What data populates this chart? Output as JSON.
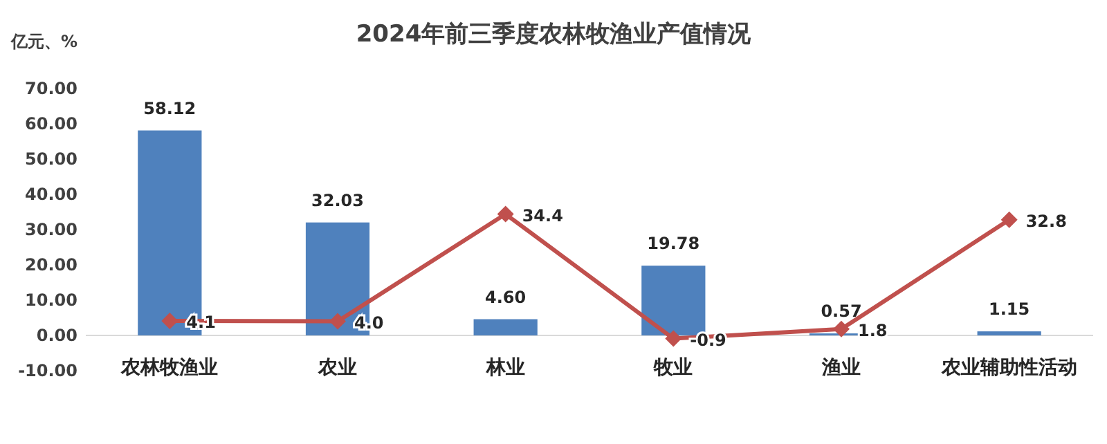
{
  "chart_data": {
    "type": "bar",
    "title": "2024年前三季度农林牧渔业产值情况",
    "ylabel": "亿元、%",
    "categories": [
      "农林牧渔业",
      "农业",
      "林业",
      "牧业",
      "渔业",
      "农业辅助性活动"
    ],
    "series": [
      {
        "color": "#4f81bd",
        "values": [
          58.12,
          32.03,
          4.6,
          19.78,
          0.57,
          1.15
        ],
        "value_labels": [
          "58.12",
          "32.03",
          "4.60",
          "19.78",
          "0.57",
          "1.15"
        ]
      },
      {
        "type": "line",
        "color": "#c0504d",
        "marker": "diamond",
        "values": [
          4.1,
          4.0,
          34.4,
          -0.9,
          1.8,
          32.8
        ],
        "value_labels": [
          "4.1",
          "4.0",
          "34.4",
          "-0.9",
          "1.8",
          "32.8"
        ]
      }
    ],
    "ylim": [
      -10,
      70
    ],
    "yticks": [
      {
        "value": -10,
        "label": "-10.00"
      },
      {
        "value": 0,
        "label": "0.00"
      },
      {
        "value": 10,
        "label": "10.00"
      },
      {
        "value": 20,
        "label": "20.00"
      },
      {
        "value": 30,
        "label": "30.00"
      },
      {
        "value": 40,
        "label": "40.00"
      },
      {
        "value": 50,
        "label": "50.00"
      },
      {
        "value": 60,
        "label": "60.00"
      },
      {
        "value": 70,
        "label": "70.00"
      }
    ]
  }
}
